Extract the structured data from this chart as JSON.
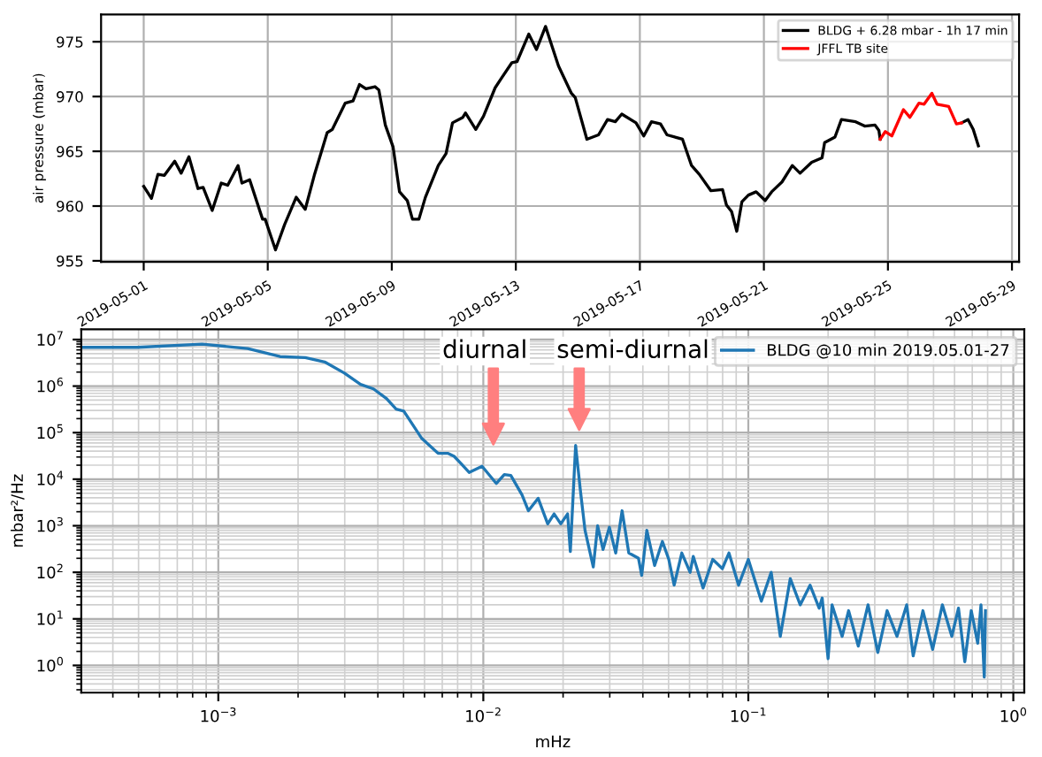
{
  "chart_data": [
    {
      "type": "line",
      "ylabel": "air pressure (mbar)",
      "xlim": [
        "2019-04-29T15:00",
        "2019-05-29T05:30"
      ],
      "ylim": [
        954.9,
        977.5
      ],
      "xticks": [
        "2019-05-01",
        "2019-05-05",
        "2019-05-09",
        "2019-05-13",
        "2019-05-17",
        "2019-05-21",
        "2019-05-25",
        "2019-05-29"
      ],
      "yticks": [
        955,
        960,
        965,
        970,
        975
      ],
      "grid": true,
      "legend": "top right",
      "series": [
        {
          "name": "BLDG + 6.28 mbar - 1h 17 min",
          "color": "#000000",
          "x": [
            "2019-05-01T00:00",
            "2019-05-01T06:00",
            "2019-05-01T11:00",
            "2019-05-01T16:00",
            "2019-05-02T00:00",
            "2019-05-02T05:00",
            "2019-05-02T11:00",
            "2019-05-02T18:00",
            "2019-05-02T22:00",
            "2019-05-03T05:00",
            "2019-05-03T12:00",
            "2019-05-03T17:00",
            "2019-05-04T01:00",
            "2019-05-04T04:00",
            "2019-05-04T10:00",
            "2019-05-04T20:00",
            "2019-05-04T22:00",
            "2019-05-05T06:00",
            "2019-05-05T13:00",
            "2019-05-05T22:00",
            "2019-05-06T05:00",
            "2019-05-06T12:00",
            "2019-05-06T22:00",
            "2019-05-07T02:00",
            "2019-05-07T12:00",
            "2019-05-07T18:00",
            "2019-05-07T23:00",
            "2019-05-08T04:00",
            "2019-05-08T11:00",
            "2019-05-08T14:00",
            "2019-05-08T19:00",
            "2019-05-09T01:00",
            "2019-05-09T06:00",
            "2019-05-09T12:00",
            "2019-05-09T16:00",
            "2019-05-09T21:00",
            "2019-05-10T02:00",
            "2019-05-10T12:00",
            "2019-05-10T18:00",
            "2019-05-10T23:00",
            "2019-05-11T07:00",
            "2019-05-11T09:00",
            "2019-05-11T17:00",
            "2019-05-11T23:00",
            "2019-05-12T08:00",
            "2019-05-12T13:00",
            "2019-05-12T21:00",
            "2019-05-13T01:00",
            "2019-05-13T10:00",
            "2019-05-13T16:00",
            "2019-05-13T20:00",
            "2019-05-13T23:00",
            "2019-05-14T04:00",
            "2019-05-14T09:00",
            "2019-05-14T19:00",
            "2019-05-14T22:00",
            "2019-05-15T07:00",
            "2019-05-15T16:00",
            "2019-05-15T23:00",
            "2019-05-16T05:00",
            "2019-05-16T10:00",
            "2019-05-16T21:00",
            "2019-05-17T03:00",
            "2019-05-17T09:00",
            "2019-05-17T16:00",
            "2019-05-17T21:00",
            "2019-05-18T09:00",
            "2019-05-18T16:00",
            "2019-05-18T22:00",
            "2019-05-19T07:00",
            "2019-05-19T16:00",
            "2019-05-19T19:00",
            "2019-05-19T23:00",
            "2019-05-20T03:00",
            "2019-05-20T07:00",
            "2019-05-20T12:00",
            "2019-05-20T18:00",
            "2019-05-21T01:00",
            "2019-05-21T06:00",
            "2019-05-21T14:00",
            "2019-05-21T22:00",
            "2019-05-22T04:00",
            "2019-05-22T13:00",
            "2019-05-22T21:00",
            "2019-05-22T23:00",
            "2019-05-23T07:00",
            "2019-05-23T12:00",
            "2019-05-23T23:00",
            "2019-05-24T06:00",
            "2019-05-24T14:00",
            "2019-05-24T17:00",
            "2019-05-24T18:00",
            "2019-05-26T00:00",
            "2019-05-27T09:00",
            "2019-05-27T14:00",
            "2019-05-27T18:00",
            "2019-05-27T22:00"
          ],
          "values": [
            961.8,
            960.7,
            962.9,
            962.8,
            964.1,
            963.0,
            964.5,
            961.6,
            961.7,
            959.6,
            962.1,
            961.9,
            963.7,
            962.1,
            962.4,
            958.8,
            958.8,
            956.0,
            958.3,
            960.8,
            959.7,
            962.8,
            966.7,
            967.0,
            969.4,
            969.6,
            971.1,
            970.7,
            970.9,
            970.6,
            967.4,
            965.4,
            961.3,
            960.5,
            958.8,
            958.8,
            960.8,
            963.7,
            964.8,
            967.6,
            968.1,
            968.5,
            967.0,
            968.2,
            970.8,
            971.7,
            973.1,
            973.2,
            975.7,
            974.3,
            975.5,
            976.4,
            974.6,
            972.8,
            970.3,
            969.9,
            966.1,
            966.5,
            967.9,
            967.7,
            968.4,
            967.6,
            966.4,
            967.7,
            967.5,
            966.5,
            966.1,
            963.7,
            962.9,
            961.4,
            961.5,
            960.1,
            959.5,
            957.7,
            960.4,
            961.0,
            961.3,
            960.5,
            961.3,
            962.2,
            963.7,
            963.0,
            964.0,
            964.4,
            965.8,
            966.3,
            967.9,
            967.7,
            967.3,
            967.4,
            966.9,
            966.1,
            null,
            967.6,
            967.9,
            967.0,
            965.5
          ]
        },
        {
          "name": "JFFL TB site",
          "color": "#ff0000",
          "x": [
            "2019-05-24T18:00",
            "2019-05-24T22:00",
            "2019-05-25T03:00",
            "2019-05-25T12:00",
            "2019-05-25T17:00",
            "2019-05-26T00:00",
            "2019-05-26T04:00",
            "2019-05-26T10:00",
            "2019-05-26T14:00",
            "2019-05-26T23:00",
            "2019-05-27T05:00",
            "2019-05-27T09:00"
          ],
          "values": [
            966.1,
            966.8,
            966.4,
            968.8,
            968.1,
            969.4,
            969.3,
            970.3,
            969.3,
            969.1,
            967.5,
            967.6
          ]
        }
      ]
    },
    {
      "type": "line",
      "xlabel": "mHz",
      "ylabel": "mbar²/Hz",
      "log": "xy",
      "xlim": [
        0.000304,
        1.1
      ],
      "ylim": [
        0.26,
        16600000
      ],
      "xticks": [
        {
          "value": 0.001,
          "label": "10$^{−3}$"
        },
        {
          "value": 0.01,
          "label": "10$^{−2}$"
        },
        {
          "value": 0.1,
          "label": "10$^{−1}$"
        },
        {
          "value": 1,
          "label": "10$^{0}$"
        }
      ],
      "yticks": [
        {
          "value": 1,
          "label": "10$^{0}$"
        },
        {
          "value": 10,
          "label": "10$^{1}$"
        },
        {
          "value": 100,
          "label": "10$^{2}$"
        },
        {
          "value": 1000,
          "label": "10$^{3}$"
        },
        {
          "value": 10000,
          "label": "10$^{4}$"
        },
        {
          "value": 100000,
          "label": "10$^{5}$"
        },
        {
          "value": 1000000,
          "label": "10$^{6}$"
        },
        {
          "value": 10000000,
          "label": "10$^{7}$"
        }
      ],
      "grid": true,
      "legend": "top right",
      "annotations": [
        "diurnal",
        "semi-diurnal"
      ],
      "series": [
        {
          "name": "BLDG @10 min 2019.05.01-27",
          "color": "#1f77b4",
          "x": [
            0.000304,
            0.000495,
            0.000869,
            0.00129,
            0.00171,
            0.00213,
            0.00252,
            0.00299,
            0.00344,
            0.00385,
            0.00431,
            0.00469,
            0.00501,
            0.00586,
            0.00675,
            0.00734,
            0.00776,
            0.00822,
            0.00884,
            0.00989,
            0.0112,
            0.012,
            0.0127,
            0.014,
            0.0148,
            0.0161,
            0.0175,
            0.0185,
            0.0196,
            0.0208,
            0.0213,
            0.0223,
            0.0232,
            0.0242,
            0.026,
            0.027,
            0.0283,
            0.0299,
            0.0316,
            0.0334,
            0.0354,
            0.0385,
            0.0396,
            0.0414,
            0.0443,
            0.0474,
            0.0501,
            0.0525,
            0.0561,
            0.0603,
            0.062,
            0.0675,
            0.0734,
            0.0798,
            0.0845,
            0.0919,
            0.1,
            0.112,
            0.122,
            0.132,
            0.144,
            0.157,
            0.171,
            0.185,
            0.19,
            0.2,
            0.207,
            0.226,
            0.239,
            0.26,
            0.283,
            0.308,
            0.334,
            0.364,
            0.396,
            0.419,
            0.456,
            0.496,
            0.54,
            0.586,
            0.621,
            0.656,
            0.694,
            0.734,
            0.755,
            0.777,
            0.785
          ],
          "values": [
            6800000,
            6800000,
            8000000,
            6400000,
            4300000,
            4100000,
            3300000,
            1900000,
            1090000,
            870000,
            540000,
            320000,
            290000,
            75000,
            36000,
            36000,
            31000,
            22000,
            14000,
            19000,
            8100,
            12600,
            12000,
            4600,
            2100,
            3900,
            1100,
            1800,
            1100,
            1800,
            280,
            53000,
            6300,
            800,
            130,
            1000,
            310,
            930,
            260,
            2100,
            260,
            200,
            86,
            800,
            140,
            460,
            190,
            53,
            260,
            100,
            220,
            46,
            190,
            120,
            260,
            53,
            190,
            24,
            100,
            4.2,
            73,
            20,
            53,
            17,
            28,
            1.4,
            20,
            4.2,
            15,
            2.6,
            20,
            1.9,
            15,
            4.2,
            20,
            1.6,
            15,
            2.2,
            20,
            4.2,
            17,
            1.2,
            15,
            3.0,
            20,
            0.56,
            15
          ]
        }
      ]
    }
  ]
}
